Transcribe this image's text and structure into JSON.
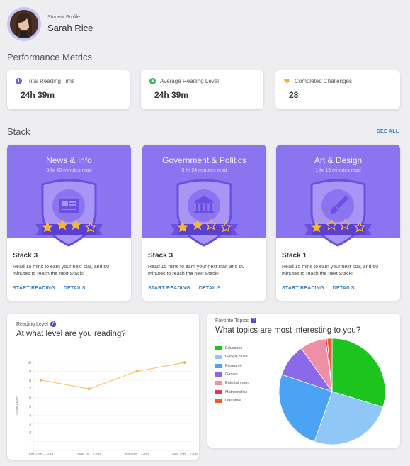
{
  "profile": {
    "caption": "Student Profile",
    "name": "Sarah Rice"
  },
  "metrics": {
    "title": "Performance Metrics",
    "items": [
      {
        "label": "Total Reading Time",
        "value": "24h 39m",
        "icon": "clock-icon",
        "color": "#7b5ce6"
      },
      {
        "label": "Average Reading Level",
        "value": "24h 39m",
        "icon": "level-icon",
        "color": "#3dbb5a"
      },
      {
        "label": "Completed Challenges",
        "value": "28",
        "icon": "trophy-icon",
        "color": "#f2b51d"
      }
    ]
  },
  "stack": {
    "title": "Stack",
    "see_all": "SEE ALL",
    "cards": [
      {
        "topic": "News & Info",
        "read": "3 hr 40 minutes read",
        "name": "Stack 3",
        "desc": "Read 15 mins to earn your next star, and 60 minutes to reach the next Stack!",
        "start": "START READING",
        "details": "DETAILS",
        "icon": "newspaper-icon",
        "stars": 3
      },
      {
        "topic": "Government & Politics",
        "read": "3 hr 24 minutes read",
        "name": "Stack 3",
        "desc": "Read 15 mins to earn your next star, and 60 minutes to reach the next Stack!",
        "start": "START READING",
        "details": "DETAILS",
        "icon": "government-building-icon",
        "stars": 2
      },
      {
        "topic": "Art & Design",
        "read": "1 hr 15 minutes read",
        "name": "Stack 1",
        "desc": "Read 15 mins to earn your next star, and 60 minutes to reach the next Stack!",
        "start": "START READING",
        "details": "DETAILS",
        "icon": "paintbrush-icon",
        "stars": 1
      }
    ],
    "star_total": 4
  },
  "reading_level": {
    "caption": "Reading Level",
    "question": "At what level are you reading?"
  },
  "favorite_topics": {
    "caption": "Favorite Topics",
    "question": "What topics are most interesting to you?"
  },
  "colors": {
    "accent": "#8a74f0",
    "link": "#3a7fc1",
    "star": "#f5b82e",
    "line": "#f6c86b"
  },
  "chart_data": [
    {
      "type": "line",
      "x": [
        "Oct 25th - 22nd",
        "Nov 1st - 22nd",
        "Nov 8th - 22nd",
        "Nov 15th - 22nd"
      ],
      "values": [
        8,
        7,
        9,
        10
      ],
      "ylabel": "Grade Level",
      "xlabel": "",
      "ylim": [
        0,
        10
      ],
      "yticks": [
        1,
        2,
        3,
        4,
        5,
        6,
        7,
        8,
        9,
        10
      ],
      "grid": true
    },
    {
      "type": "pie",
      "series": [
        {
          "name": "Education",
          "value": 30,
          "color": "#1ec41e"
        },
        {
          "name": "Google Suite",
          "value": 26,
          "color": "#8fc8f7"
        },
        {
          "name": "Research",
          "value": 25,
          "color": "#4aa3f5"
        },
        {
          "name": "Games",
          "value": 10,
          "color": "#8a6ae8"
        },
        {
          "name": "Entertainment",
          "value": 8,
          "color": "#ee8fa6"
        },
        {
          "name": "Mathematics",
          "value": 0.5,
          "color": "#e8335a"
        },
        {
          "name": "Literature",
          "value": 1.5,
          "color": "#f05b2a"
        }
      ],
      "legend": "left"
    }
  ]
}
